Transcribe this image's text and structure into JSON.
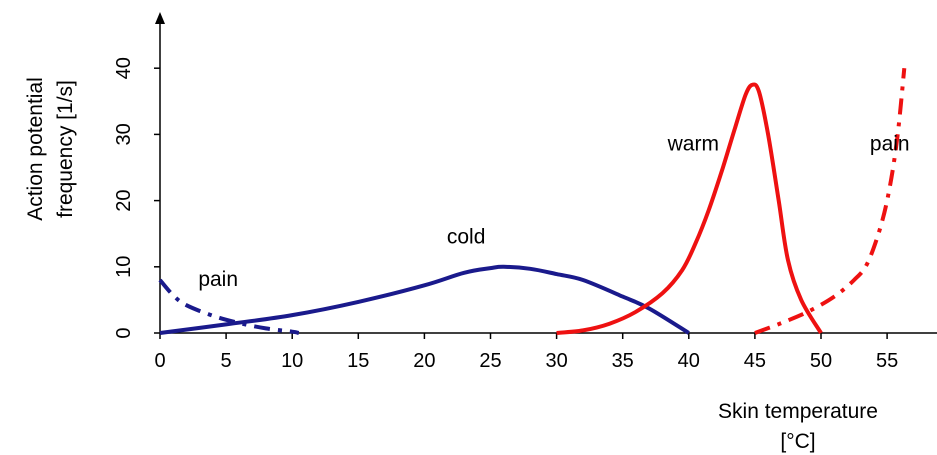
{
  "chart_data": {
    "type": "line",
    "xlabel": [
      "Skin temperature",
      "[°C]"
    ],
    "ylabel": [
      "Action potential",
      "frequency [1/s]"
    ],
    "xlim": [
      0,
      57
    ],
    "ylim": [
      0,
      45
    ],
    "xticks": [
      0,
      5,
      10,
      15,
      20,
      25,
      30,
      35,
      40,
      45,
      50,
      55
    ],
    "yticks": [
      0,
      10,
      20,
      30,
      40
    ],
    "grid": false,
    "series": [
      {
        "label": "cold",
        "color": "#1a1a8c",
        "style": "solid",
        "points": [
          [
            0,
            0
          ],
          [
            5,
            1.3
          ],
          [
            10,
            2.7
          ],
          [
            15,
            4.7
          ],
          [
            20,
            7.2
          ],
          [
            23,
            9.1
          ],
          [
            25,
            9.8
          ],
          [
            26,
            10
          ],
          [
            28,
            9.7
          ],
          [
            30,
            8.9
          ],
          [
            32,
            8.0
          ],
          [
            35,
            5.5
          ],
          [
            37,
            3.7
          ],
          [
            40,
            0
          ]
        ]
      },
      {
        "label": "pain",
        "color": "#1a1a8c",
        "style": "dashdot",
        "points": [
          [
            0,
            8
          ],
          [
            1,
            5.7
          ],
          [
            2,
            4.2
          ],
          [
            4,
            2.6
          ],
          [
            6,
            1.5
          ],
          [
            8,
            0.7
          ],
          [
            10,
            0.2
          ],
          [
            10.5,
            0
          ]
        ]
      },
      {
        "label": "warm",
        "color": "#ee1111",
        "style": "solid",
        "points": [
          [
            30,
            0
          ],
          [
            32,
            0.4
          ],
          [
            34,
            1.4
          ],
          [
            36,
            3.2
          ],
          [
            38,
            6.0
          ],
          [
            39.5,
            9.5
          ],
          [
            40.5,
            13.5
          ],
          [
            41.5,
            18.5
          ],
          [
            42.5,
            24.5
          ],
          [
            43.5,
            31
          ],
          [
            44.3,
            36
          ],
          [
            44.8,
            37.5
          ],
          [
            45.3,
            36.5
          ],
          [
            46,
            30
          ],
          [
            46.8,
            20
          ],
          [
            47.5,
            11
          ],
          [
            48.5,
            5
          ],
          [
            50,
            0
          ]
        ]
      },
      {
        "label": "pain",
        "color": "#ee1111",
        "style": "dashdot",
        "points": [
          [
            45,
            0
          ],
          [
            47,
            1.5
          ],
          [
            49,
            3.2
          ],
          [
            51,
            5.5
          ],
          [
            52.5,
            8
          ],
          [
            53.5,
            10.5
          ],
          [
            54.5,
            16
          ],
          [
            55.2,
            22
          ],
          [
            55.8,
            30
          ],
          [
            56.3,
            40
          ]
        ]
      }
    ],
    "annotations": [
      {
        "text": "cold",
        "x": 21.7,
        "y": 13.5
      },
      {
        "text": "pain",
        "x": 2.9,
        "y": 7.1
      },
      {
        "text": "warm",
        "x": 38.4,
        "y": 27.6
      },
      {
        "text": "pain",
        "x": 53.7,
        "y": 27.6
      }
    ]
  }
}
